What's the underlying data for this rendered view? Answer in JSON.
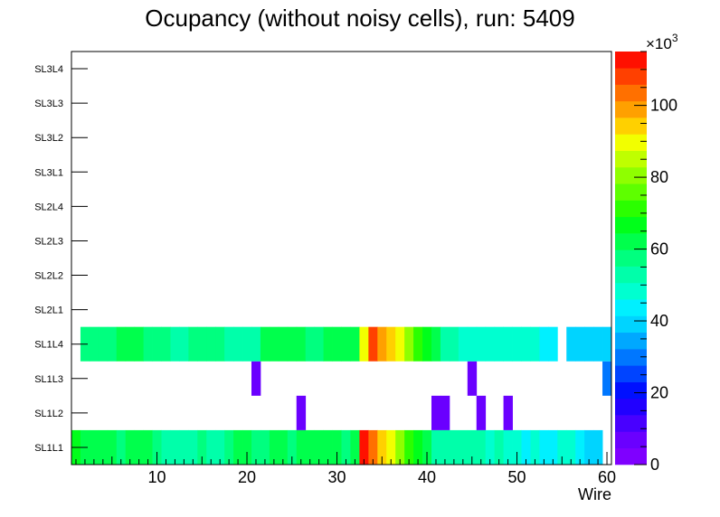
{
  "chart_data": {
    "type": "heatmap",
    "title": "Ocupancy (without noisy cells), run: 5409",
    "xlabel": "Wire",
    "ylabel": "",
    "xlim": [
      0.5,
      60.5
    ],
    "x_ticks": [
      10,
      20,
      30,
      40,
      50,
      60
    ],
    "rows": [
      "SL1L1",
      "SL1L2",
      "SL1L3",
      "SL1L4",
      "SL2L1",
      "SL2L2",
      "SL2L3",
      "SL2L4",
      "SL3L1",
      "SL3L2",
      "SL3L3",
      "SL3L4"
    ],
    "zlim": [
      0,
      115000
    ],
    "z_ticks": [
      0,
      20,
      40,
      60,
      80,
      100
    ],
    "z_multiplier": "×10",
    "z_multiplier_exp": "3",
    "palette": [
      "#7f00ff",
      "#6a00ff",
      "#4800ff",
      "#2100ff",
      "#0010ff",
      "#0044ff",
      "#0077ff",
      "#00a8ff",
      "#00d4ff",
      "#00f0ff",
      "#00ffd0",
      "#00ffaa",
      "#00ff7f",
      "#00ff4c",
      "#00ff1a",
      "#2bff00",
      "#5eff00",
      "#8fff00",
      "#bfff00",
      "#f2ff00",
      "#ffd000",
      "#ffa000",
      "#ff7000",
      "#ff4000",
      "#ff1000"
    ],
    "series": [
      {
        "name": "SL1L1",
        "x": [
          1,
          2,
          3,
          4,
          5,
          6,
          7,
          8,
          9,
          10,
          11,
          12,
          13,
          14,
          15,
          16,
          17,
          18,
          19,
          20,
          21,
          22,
          23,
          24,
          25,
          26,
          27,
          28,
          29,
          30,
          31,
          32,
          33,
          34,
          35,
          36,
          37,
          38,
          39,
          40,
          41,
          42,
          43,
          44,
          45,
          46,
          47,
          48,
          49,
          50,
          51,
          52,
          53,
          54,
          55,
          56,
          57,
          58,
          59
        ],
        "values": [
          68000,
          62000,
          61000,
          63000,
          60000,
          59000,
          61000,
          62000,
          60000,
          58000,
          55000,
          53000,
          52000,
          54000,
          56000,
          55000,
          52000,
          58000,
          60000,
          61000,
          59000,
          58000,
          60000,
          64000,
          58000,
          64000,
          61000,
          62000,
          60000,
          61000,
          59000,
          62000,
          115000,
          105000,
          95000,
          88000,
          82000,
          70000,
          66000,
          62000,
          55000,
          54000,
          53000,
          54000,
          52000,
          51000,
          46000,
          53000,
          48000,
          46000,
          45000,
          46000,
          44000,
          45000,
          47000,
          46000,
          44000,
          40000,
          38000
        ]
      },
      {
        "name": "SL1L2",
        "x": [
          26,
          41,
          42,
          46,
          49
        ],
        "values": [
          6000,
          6000,
          6000,
          6000,
          6000
        ]
      },
      {
        "name": "SL1L3",
        "x": [
          21,
          45,
          60
        ],
        "values": [
          6000,
          6000,
          28000
        ]
      },
      {
        "name": "SL1L4",
        "x": [
          2,
          3,
          4,
          5,
          6,
          7,
          8,
          9,
          10,
          11,
          12,
          13,
          14,
          15,
          16,
          17,
          18,
          19,
          20,
          21,
          22,
          23,
          24,
          25,
          26,
          27,
          28,
          29,
          30,
          31,
          32,
          33,
          34,
          35,
          36,
          37,
          38,
          39,
          40,
          41,
          42,
          43,
          44,
          45,
          46,
          47,
          48,
          49,
          50,
          51,
          52,
          53,
          54,
          56,
          57,
          58,
          59,
          60
        ],
        "values": [
          58000,
          58000,
          58000,
          56000,
          60000,
          60000,
          60000,
          57000,
          57000,
          57000,
          52000,
          52000,
          56000,
          56000,
          56000,
          58000,
          54000,
          54000,
          54000,
          54000,
          60000,
          60000,
          60000,
          60000,
          60000,
          56000,
          56000,
          60000,
          60000,
          60000,
          60000,
          90000,
          110000,
          100000,
          96000,
          90000,
          80000,
          70000,
          66000,
          64000,
          55000,
          55000,
          50000,
          48000,
          48000,
          48000,
          48000,
          48000,
          48000,
          48000,
          48000,
          42000,
          42000,
          40000,
          40000,
          40000,
          40000,
          40000
        ]
      }
    ]
  }
}
